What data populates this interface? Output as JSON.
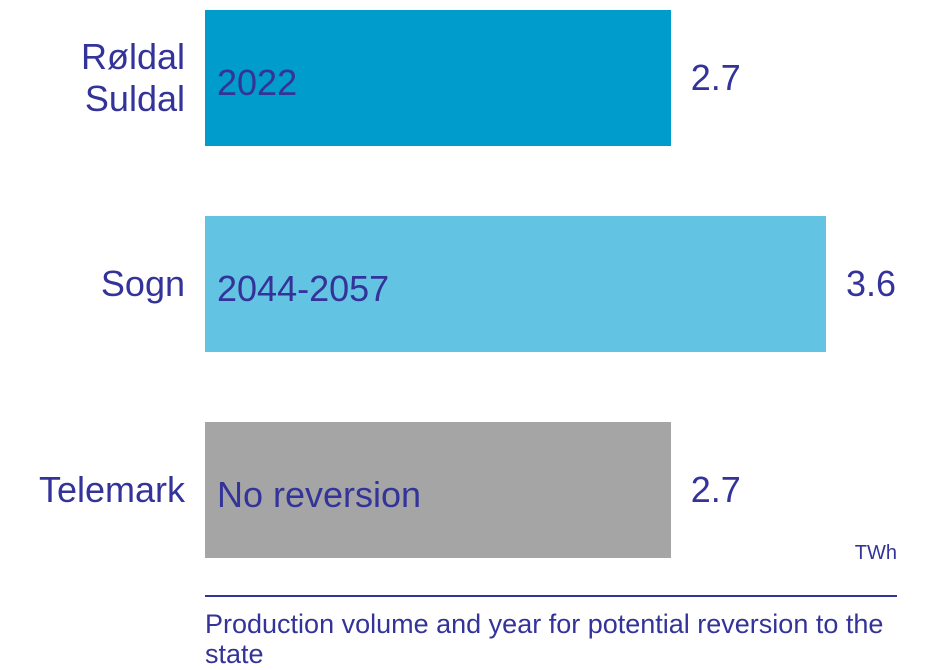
{
  "chart_data": {
    "type": "bar",
    "orientation": "horizontal",
    "categories": [
      "Røldal\nSuldal",
      "Sogn",
      "Telemark"
    ],
    "values": [
      2.7,
      3.6,
      2.7
    ],
    "colors": [
      "#009ccc",
      "#63c3e3",
      "#a5a5a5"
    ],
    "bar_labels": [
      "2022",
      "2044-2057",
      "No reversion"
    ],
    "unit": "TWh",
    "footnote": "Production volume and year for potential reversion to the state"
  }
}
